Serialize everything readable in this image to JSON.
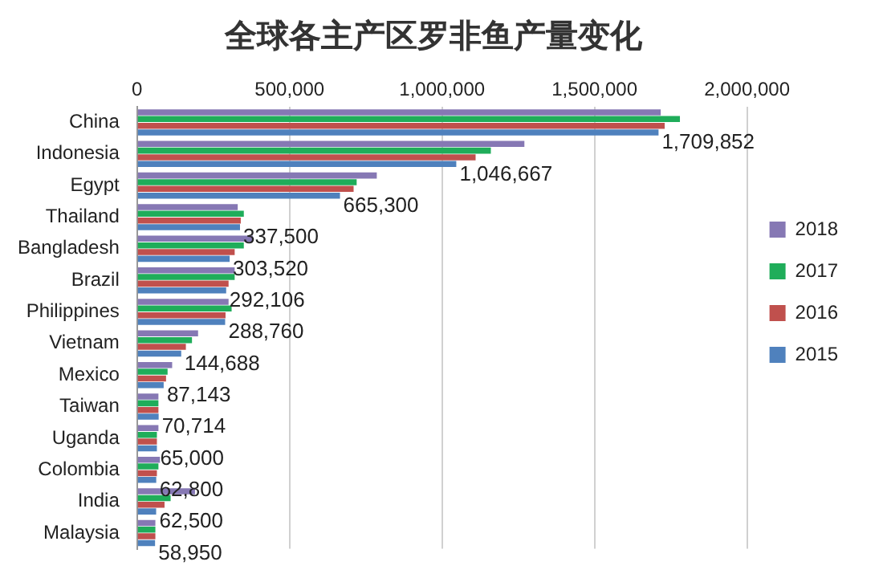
{
  "chart_data": {
    "type": "bar",
    "orientation": "horizontal",
    "title": "全球各主产区罗非鱼产量变化",
    "categories": [
      "China",
      "Indonesia",
      "Egypt",
      "Thailand",
      "Bangladesh",
      "Brazil",
      "Philippines",
      "Vietnam",
      "Mexico",
      "Taiwan",
      "Uganda",
      "Colombia",
      "India",
      "Malaysia"
    ],
    "series": [
      {
        "name": "2018",
        "color": "#8678b4",
        "values": [
          1717000,
          1270000,
          786000,
          330000,
          380000,
          320000,
          300000,
          200000,
          115000,
          70000,
          70000,
          75000,
          190000,
          60000
        ]
      },
      {
        "name": "2017",
        "color": "#1fad5a",
        "values": [
          1780000,
          1160000,
          720000,
          350000,
          350000,
          320000,
          310000,
          180000,
          100000,
          70000,
          65000,
          70000,
          110000,
          60000
        ]
      },
      {
        "name": "2016",
        "color": "#c0504d",
        "values": [
          1730000,
          1110000,
          710000,
          340000,
          320000,
          300000,
          290000,
          160000,
          95000,
          70000,
          65000,
          65000,
          90000,
          60000
        ]
      },
      {
        "name": "2015",
        "color": "#4f81bd",
        "values": [
          1709852,
          1046667,
          665300,
          337500,
          303520,
          292106,
          288760,
          144688,
          87143,
          70714,
          65000,
          62800,
          62500,
          58950
        ],
        "value_labels": [
          "1,709,852",
          "1,046,667",
          "665,300",
          "337,500",
          "303,520",
          "292,106",
          "288,760",
          "144,688",
          "87,143",
          "70,714",
          "65,000",
          "62,800",
          "62,500",
          "58,950"
        ]
      }
    ],
    "xlim": [
      0,
      2000000
    ],
    "xticks": [
      {
        "value": 0,
        "label": "0"
      },
      {
        "value": 500000,
        "label": "500,000"
      },
      {
        "value": 1000000,
        "label": "1,000,000"
      },
      {
        "value": 1500000,
        "label": "1,500,000"
      },
      {
        "value": 2000000,
        "label": "2,000,000"
      }
    ],
    "grid": "x",
    "legend": "right"
  }
}
